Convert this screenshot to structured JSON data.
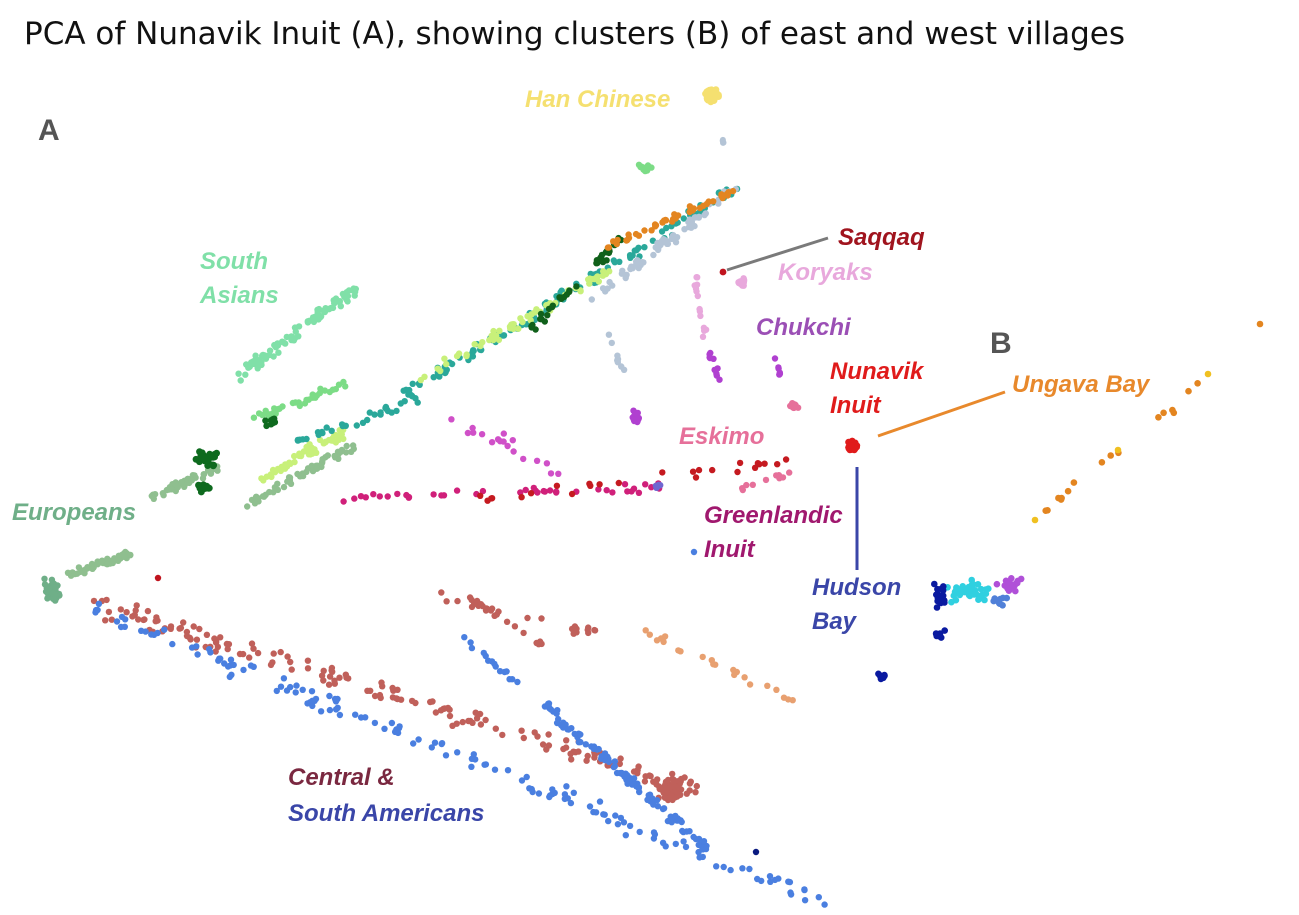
{
  "title": "PCA of Nunavik Inuit (A), showing clusters (B) of east and west villages",
  "chart_data": [
    {
      "type": "scatter",
      "panel": "A",
      "groups": [
        {
          "name": "Han Chinese",
          "color": "#F5E070"
        },
        {
          "name": "South Asians",
          "color": "#80E0A8"
        },
        {
          "name": "Europeans",
          "color": "#6FAF88"
        },
        {
          "name": "Saqqaq",
          "color": "#A0141E"
        },
        {
          "name": "Koryaks",
          "color": "#E8A8DC"
        },
        {
          "name": "Chukchi",
          "color": "#9B4FB5"
        },
        {
          "name": "Nunavik Inuit",
          "color": "#E01B1B"
        },
        {
          "name": "Eskimo",
          "color": "#E6709A"
        },
        {
          "name": "Greenlandic Inuit",
          "color": "#A0186E"
        },
        {
          "name": "Central & South Americans",
          "color": "#7A2840"
        }
      ],
      "labels": [
        {
          "lines": [
            "Han Chinese"
          ],
          "color": "#F5E070"
        },
        {
          "lines": [
            "South",
            "Asians"
          ],
          "color": "#80E0A8"
        },
        {
          "lines": [
            "Europeans"
          ],
          "color": "#6FAF88"
        },
        {
          "lines": [
            "Saqqaq"
          ],
          "color": "#A0141E"
        },
        {
          "lines": [
            "Koryaks"
          ],
          "color": "#E8A8DC"
        },
        {
          "lines": [
            "Chukchi"
          ],
          "color": "#9B4FB5"
        },
        {
          "lines": [
            "Nunavik",
            "Inuit"
          ],
          "color": "#E01B1B"
        },
        {
          "lines": [
            "Eskimo"
          ],
          "color": "#E6709A"
        },
        {
          "lines": [
            "Greenlandic",
            "Inuit"
          ],
          "color": "#A0186E"
        },
        {
          "lines": [
            "Central &"
          ],
          "color": "#7A2840"
        },
        {
          "lines": [
            "South Americans"
          ],
          "color": "#3A46A8"
        }
      ]
    },
    {
      "type": "scatter",
      "panel": "B",
      "groups": [
        {
          "name": "Ungava Bay",
          "color": "#E8892C"
        },
        {
          "name": "Hudson Bay",
          "color": "#3A46A8"
        }
      ],
      "labels": [
        {
          "lines": [
            "Ungava Bay"
          ],
          "color": "#E8892C"
        },
        {
          "lines": [
            "Hudson",
            "Bay"
          ],
          "color": "#3A46A8"
        }
      ]
    }
  ]
}
